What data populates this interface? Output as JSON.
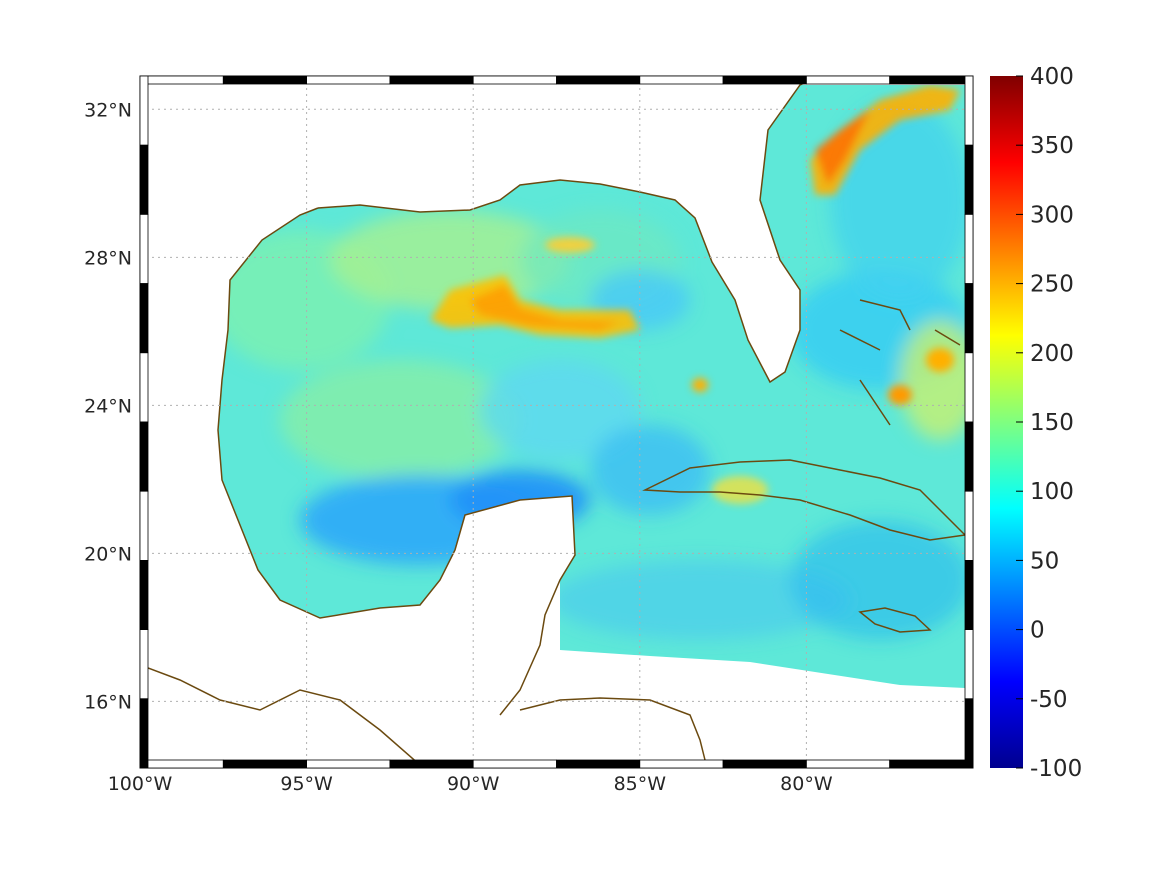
{
  "map": {
    "lon_range": [
      -100,
      -75
    ],
    "lat_range": [
      14.2,
      32.9
    ],
    "lon_ticks": [
      {
        "value": -100,
        "label": "100°W"
      },
      {
        "value": -95,
        "label": "95°W"
      },
      {
        "value": -90,
        "label": "90°W"
      },
      {
        "value": -85,
        "label": "85°W"
      },
      {
        "value": -80,
        "label": "80°W"
      }
    ],
    "lat_ticks": [
      {
        "value": 16,
        "label": "16°N"
      },
      {
        "value": 20,
        "label": "20°N"
      },
      {
        "value": 24,
        "label": "24°N"
      },
      {
        "value": 28,
        "label": "28°N"
      },
      {
        "value": 32,
        "label": "32°N"
      }
    ],
    "coastline_color": "#6b4a10",
    "land_color": "#ffffff",
    "grid": true,
    "frame_style": "black-white checkered"
  },
  "colorbar": {
    "colormap": "jet",
    "range": [
      -100,
      400
    ],
    "ticks": [
      "400",
      "350",
      "300",
      "250",
      "200",
      "150",
      "100",
      "50",
      "0",
      "-50",
      "-100"
    ]
  }
}
